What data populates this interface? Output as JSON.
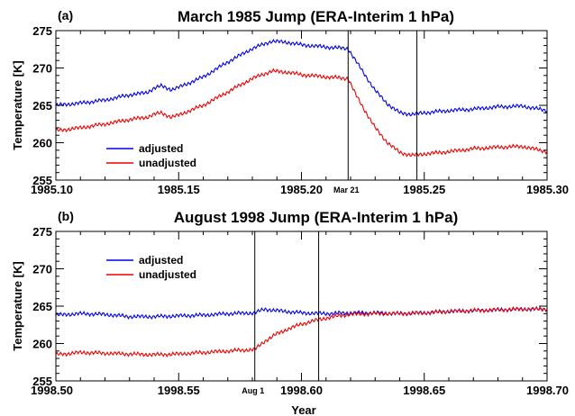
{
  "xlabel": "Year",
  "chart_data": [
    {
      "type": "line",
      "panel_tag": "(a)",
      "title": "March 1985 Jump (ERA-Interim 1 hPa)",
      "ylabel": "Temperature [K]",
      "xlim": [
        1985.1,
        1985.3
      ],
      "ylim": [
        255,
        275
      ],
      "x_ticks": [
        "1985.10",
        "1985.15",
        "1985.20",
        "1985.25",
        "1985.30"
      ],
      "y_ticks": [
        "255",
        "260",
        "265",
        "270",
        "275"
      ],
      "legend_position": "lower-left",
      "markers": [
        {
          "x": 1985.219,
          "label": "Mar 21"
        },
        {
          "x": 1985.247,
          "label": ""
        }
      ],
      "series": [
        {
          "name": "adjusted",
          "color": "#0000ee",
          "points": [
            [
              1985.1,
              265.0
            ],
            [
              1985.11,
              265.3
            ],
            [
              1985.12,
              265.7
            ],
            [
              1985.13,
              266.4
            ],
            [
              1985.137,
              266.7
            ],
            [
              1985.14,
              267.3
            ],
            [
              1985.143,
              267.6
            ],
            [
              1985.147,
              267.1
            ],
            [
              1985.15,
              267.4
            ],
            [
              1985.16,
              268.8
            ],
            [
              1985.17,
              270.8
            ],
            [
              1985.18,
              272.6
            ],
            [
              1985.188,
              273.6
            ],
            [
              1985.195,
              273.4
            ],
            [
              1985.2,
              273.1
            ],
            [
              1985.21,
              272.8
            ],
            [
              1985.219,
              272.6
            ],
            [
              1985.222,
              271.0
            ],
            [
              1985.226,
              269.0
            ],
            [
              1985.23,
              267.0
            ],
            [
              1985.235,
              265.2
            ],
            [
              1985.24,
              264.0
            ],
            [
              1985.245,
              263.8
            ],
            [
              1985.25,
              264.0
            ],
            [
              1985.26,
              264.3
            ],
            [
              1985.27,
              264.5
            ],
            [
              1985.28,
              264.8
            ],
            [
              1985.29,
              264.9
            ],
            [
              1985.3,
              264.3
            ]
          ]
        },
        {
          "name": "unadjusted",
          "color": "#ee0000",
          "points": [
            [
              1985.1,
              261.6
            ],
            [
              1985.11,
              262.0
            ],
            [
              1985.12,
              262.5
            ],
            [
              1985.13,
              263.1
            ],
            [
              1985.137,
              263.4
            ],
            [
              1985.14,
              263.8
            ],
            [
              1985.143,
              264.0
            ],
            [
              1985.147,
              263.4
            ],
            [
              1985.15,
              263.7
            ],
            [
              1985.16,
              265.0
            ],
            [
              1985.17,
              266.8
            ],
            [
              1985.18,
              268.6
            ],
            [
              1985.188,
              269.6
            ],
            [
              1985.195,
              269.4
            ],
            [
              1985.2,
              269.1
            ],
            [
              1985.21,
              268.8
            ],
            [
              1985.219,
              268.6
            ],
            [
              1985.222,
              266.5
            ],
            [
              1985.226,
              264.2
            ],
            [
              1985.23,
              262.0
            ],
            [
              1985.235,
              260.0
            ],
            [
              1985.24,
              258.7
            ],
            [
              1985.245,
              258.3
            ],
            [
              1985.25,
              258.5
            ],
            [
              1985.26,
              258.8
            ],
            [
              1985.27,
              259.2
            ],
            [
              1985.28,
              259.4
            ],
            [
              1985.29,
              259.5
            ],
            [
              1985.3,
              258.8
            ]
          ]
        }
      ]
    },
    {
      "type": "line",
      "panel_tag": "(b)",
      "title": "August 1998 Jump (ERA-Interim 1 hPa)",
      "ylabel": "Temperature [K]",
      "xlim": [
        1998.5,
        1998.7
      ],
      "ylim": [
        255,
        275
      ],
      "x_ticks": [
        "1998.50",
        "1998.55",
        "1998.60",
        "1998.65",
        "1998.70"
      ],
      "y_ticks": [
        "255",
        "260",
        "265",
        "270",
        "275"
      ],
      "legend_position": "upper-left",
      "markers": [
        {
          "x": 1998.581,
          "label": "Aug 1"
        },
        {
          "x": 1998.607,
          "label": ""
        }
      ],
      "series": [
        {
          "name": "adjusted",
          "color": "#0000ee",
          "points": [
            [
              1998.5,
              263.8
            ],
            [
              1998.51,
              264.0
            ],
            [
              1998.52,
              263.9
            ],
            [
              1998.53,
              263.6
            ],
            [
              1998.54,
              263.6
            ],
            [
              1998.55,
              263.7
            ],
            [
              1998.56,
              263.8
            ],
            [
              1998.57,
              264.0
            ],
            [
              1998.581,
              264.1
            ],
            [
              1998.585,
              264.6
            ],
            [
              1998.59,
              264.4
            ],
            [
              1998.6,
              264.1
            ],
            [
              1998.61,
              264.0
            ],
            [
              1998.62,
              264.1
            ],
            [
              1998.63,
              264.1
            ],
            [
              1998.64,
              264.0
            ],
            [
              1998.65,
              264.1
            ],
            [
              1998.66,
              264.3
            ],
            [
              1998.67,
              264.4
            ],
            [
              1998.68,
              264.5
            ],
            [
              1998.69,
              264.6
            ],
            [
              1998.7,
              264.6
            ]
          ]
        },
        {
          "name": "unadjusted",
          "color": "#ee0000",
          "points": [
            [
              1998.5,
              258.5
            ],
            [
              1998.51,
              258.8
            ],
            [
              1998.52,
              258.7
            ],
            [
              1998.53,
              258.6
            ],
            [
              1998.54,
              258.5
            ],
            [
              1998.55,
              258.6
            ],
            [
              1998.56,
              258.8
            ],
            [
              1998.57,
              259.0
            ],
            [
              1998.581,
              259.2
            ],
            [
              1998.585,
              260.3
            ],
            [
              1998.59,
              261.3
            ],
            [
              1998.595,
              262.0
            ],
            [
              1998.6,
              262.6
            ],
            [
              1998.607,
              263.2
            ],
            [
              1998.615,
              263.7
            ],
            [
              1998.62,
              263.9
            ],
            [
              1998.63,
              264.0
            ],
            [
              1998.64,
              264.0
            ],
            [
              1998.65,
              264.1
            ],
            [
              1998.66,
              264.3
            ],
            [
              1998.67,
              264.4
            ],
            [
              1998.68,
              264.5
            ],
            [
              1998.69,
              264.6
            ],
            [
              1998.7,
              264.6
            ]
          ]
        }
      ]
    }
  ]
}
